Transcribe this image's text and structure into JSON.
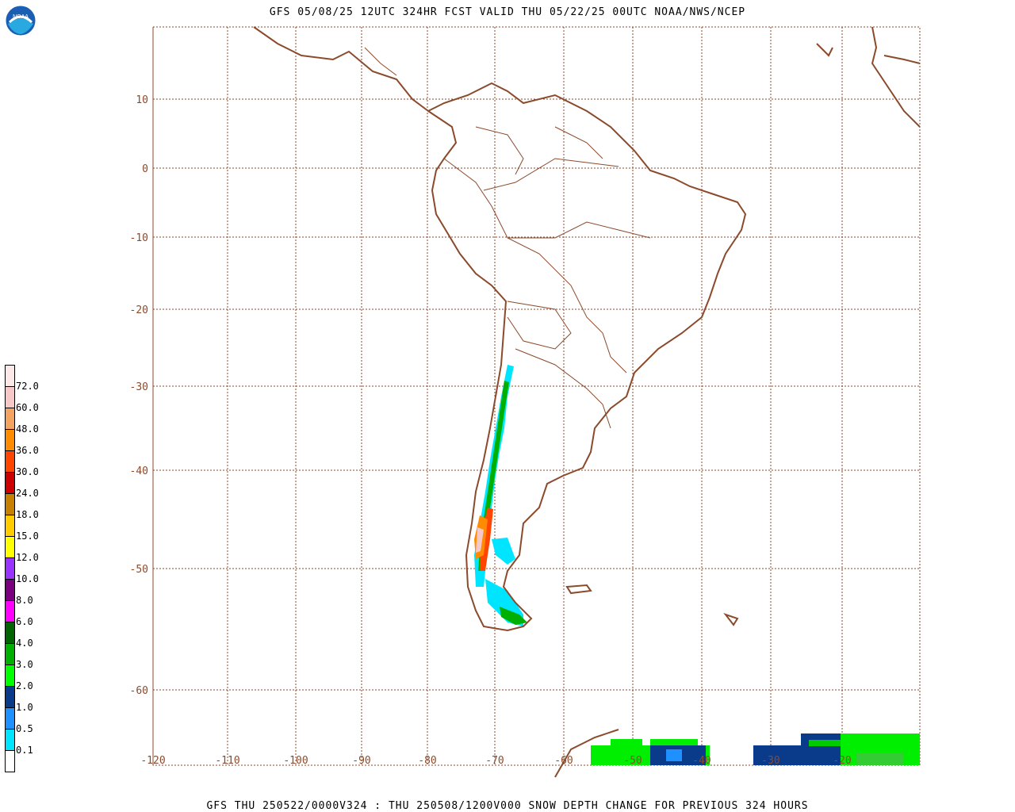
{
  "header": {
    "title": "GFS 05/08/25 12UTC 324HR FCST VALID THU 05/22/25 00UTC NOAA/NWS/NCEP"
  },
  "footer": {
    "caption": "GFS THU 250522/0000V324 : THU 250508/1200V000 SNOW DEPTH CHANGE FOR PREVIOUS 324 HOURS"
  },
  "logo": {
    "icon": "noaa-logo-icon",
    "text": "NOAA"
  },
  "map": {
    "region": "South America",
    "lat_labels": [
      "10",
      "0",
      "-10",
      "-20",
      "-30",
      "-40",
      "-50",
      "-60"
    ],
    "lon_labels": [
      "-120",
      "-110",
      "-100",
      "-90",
      "-80",
      "-70",
      "-60",
      "-50",
      "-40",
      "-30",
      "-20"
    ],
    "colors": {
      "coastline": "#8b4a2b",
      "borders": "#8b4a2b",
      "grid": "#8b4a2b"
    }
  },
  "legend": {
    "items": [
      {
        "label": "",
        "color": "#fde8e8"
      },
      {
        "label": "72.0",
        "color": "#f8c8c8"
      },
      {
        "label": "60.0",
        "color": "#f4a460"
      },
      {
        "label": "48.0",
        "color": "#ff8c00"
      },
      {
        "label": "36.0",
        "color": "#ff4500"
      },
      {
        "label": "30.0",
        "color": "#cc0000"
      },
      {
        "label": "24.0",
        "color": "#c88000"
      },
      {
        "label": "18.0",
        "color": "#ffcc00"
      },
      {
        "label": "15.0",
        "color": "#ffff00"
      },
      {
        "label": "12.0",
        "color": "#9933ff"
      },
      {
        "label": "10.0",
        "color": "#7a0080"
      },
      {
        "label": "8.0",
        "color": "#ff00ff"
      },
      {
        "label": "6.0",
        "color": "#006400"
      },
      {
        "label": "4.0",
        "color": "#00b000"
      },
      {
        "label": "3.0",
        "color": "#00ff00"
      },
      {
        "label": "2.0",
        "color": "#0a3a8a"
      },
      {
        "label": "1.0",
        "color": "#1e90ff"
      },
      {
        "label": "0.5",
        "color": "#00e5ff"
      },
      {
        "label": "0.1",
        "color": "#ffffff"
      }
    ]
  }
}
